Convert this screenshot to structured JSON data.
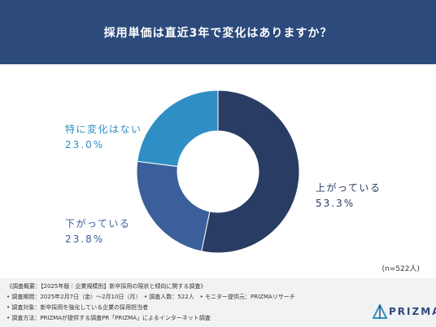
{
  "title": "採用単価は直近3年で変化はありますか？",
  "chart_data": {
    "type": "pie",
    "donut": true,
    "categories": [
      "上がっている",
      "下がっている",
      "特に変化はない"
    ],
    "values": [
      53.3,
      23.8,
      23.0
    ],
    "labels": [
      "53.3%",
      "23.8%",
      "23.0%"
    ],
    "colors": [
      "#283c64",
      "#3a5f9a",
      "#2f8fc4"
    ]
  },
  "sample_size": "(n=522人)",
  "footnotes": [
    "《調査概要：【2025年版｜企業規模別】新卒採用の現状と傾向に関する調査》",
    "• 調査期間：2025年2月7日（金）〜2月10日（月）　• 調査人数：522人　• モニター提供元：PRIZMAリサーチ",
    "• 調査対象：新卒採用を強化している企業の採用担当者",
    "• 調査方法：PRIZMAが提供する調査PR「PRIZMA」によるインターネット調査"
  ],
  "logo_text": "PRIZMA"
}
